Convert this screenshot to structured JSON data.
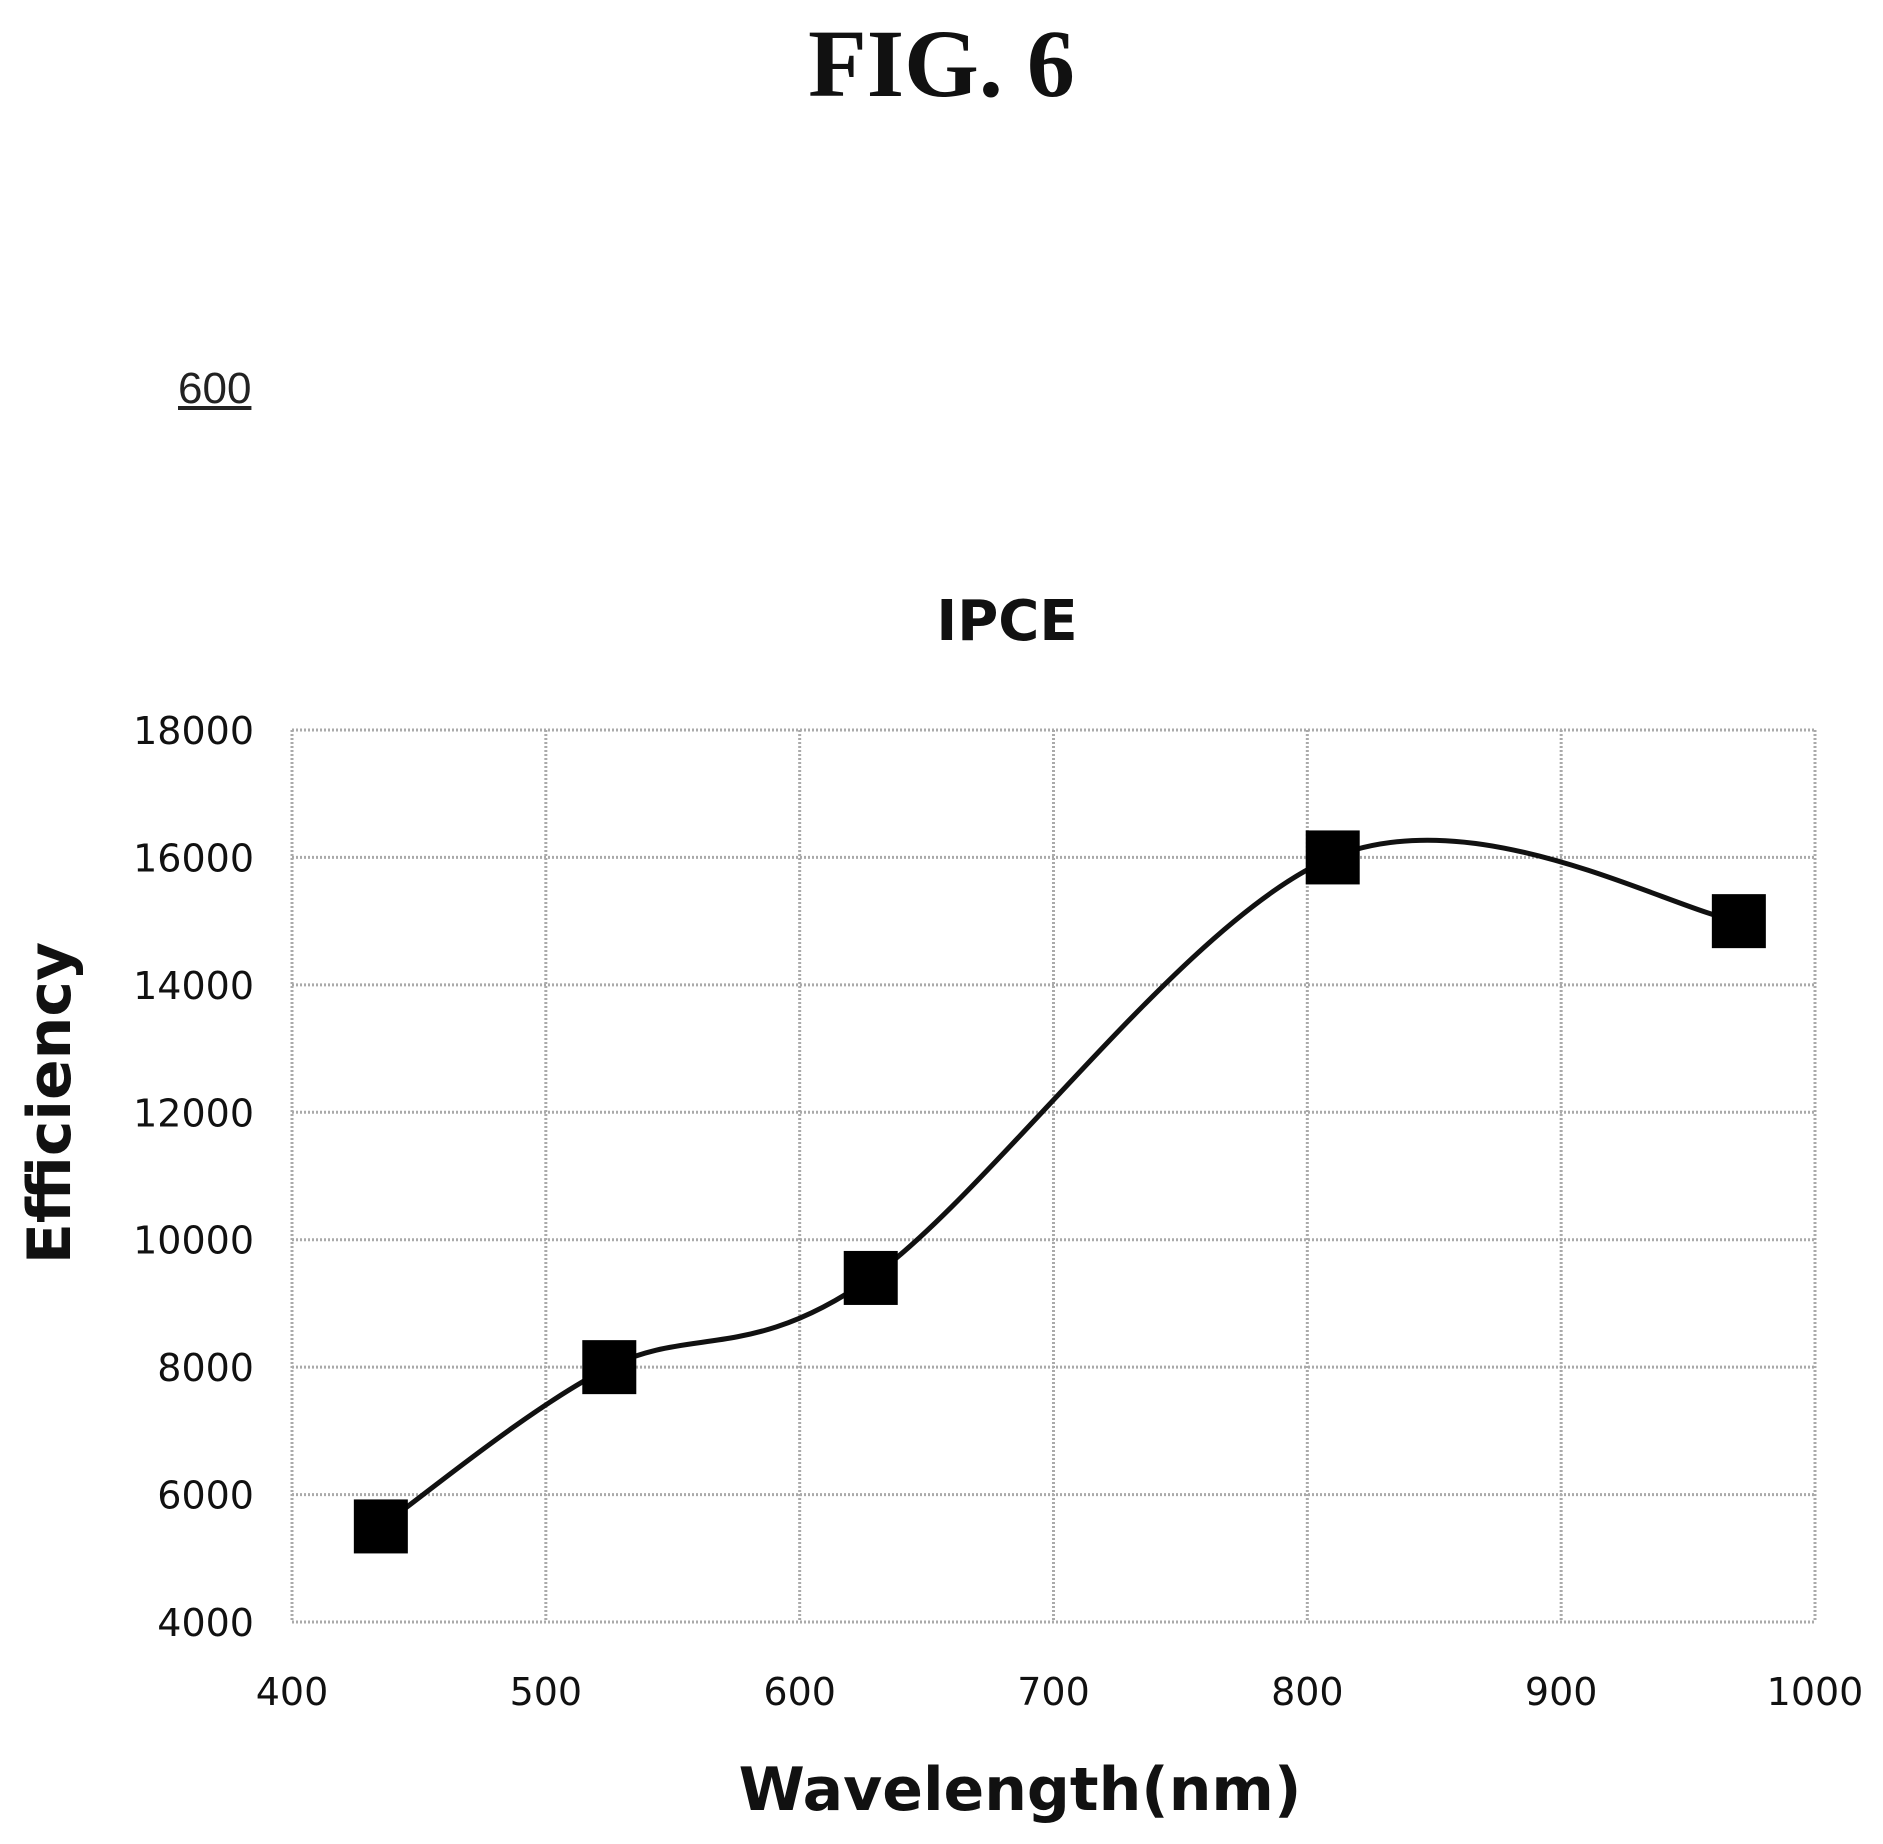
{
  "figure": {
    "label": "FIG. 6",
    "reference_numeral": "600"
  },
  "chart_data": {
    "type": "line",
    "title": "IPCE",
    "xlabel": "Wavelength(nm)",
    "ylabel": "Efficiency",
    "xlim": [
      400,
      1000
    ],
    "ylim": [
      4000,
      18000
    ],
    "xticks": [
      400,
      500,
      600,
      700,
      800,
      900,
      1000
    ],
    "yticks": [
      4000,
      6000,
      8000,
      10000,
      12000,
      14000,
      16000,
      18000
    ],
    "grid": true,
    "smooth": true,
    "marker": "square",
    "series": [
      {
        "x": [
          435,
          525,
          628,
          810,
          970
        ],
        "y": [
          5500,
          8000,
          9400,
          16000,
          15000
        ]
      }
    ],
    "colors": {
      "line": "#111111",
      "marker": "#000000",
      "grid": "#aaaaaa"
    }
  }
}
